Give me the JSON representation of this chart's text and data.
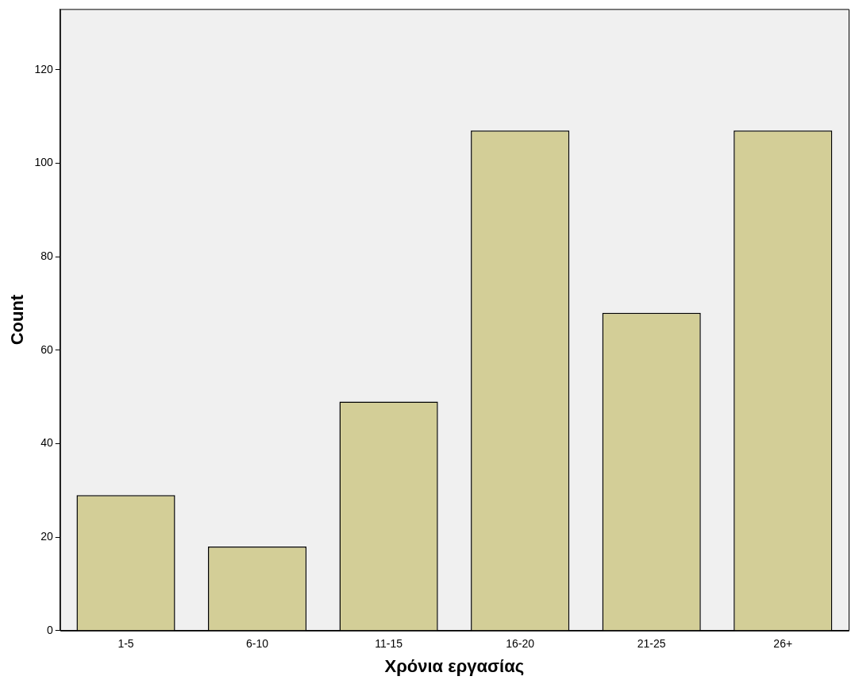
{
  "chart_data": {
    "type": "bar",
    "xlabel": "Χρόνια εργασίας",
    "ylabel": "Count",
    "categories": [
      "1-5",
      "6-10",
      "11-15",
      "16-20",
      "21-25",
      "26+"
    ],
    "values": [
      29,
      18,
      49,
      107,
      68,
      107
    ],
    "color": "#d3ce97",
    "ylim": [
      0,
      133
    ],
    "yticks": [
      0,
      20,
      40,
      60,
      80,
      100,
      120
    ],
    "grid": false,
    "legend": false
  }
}
